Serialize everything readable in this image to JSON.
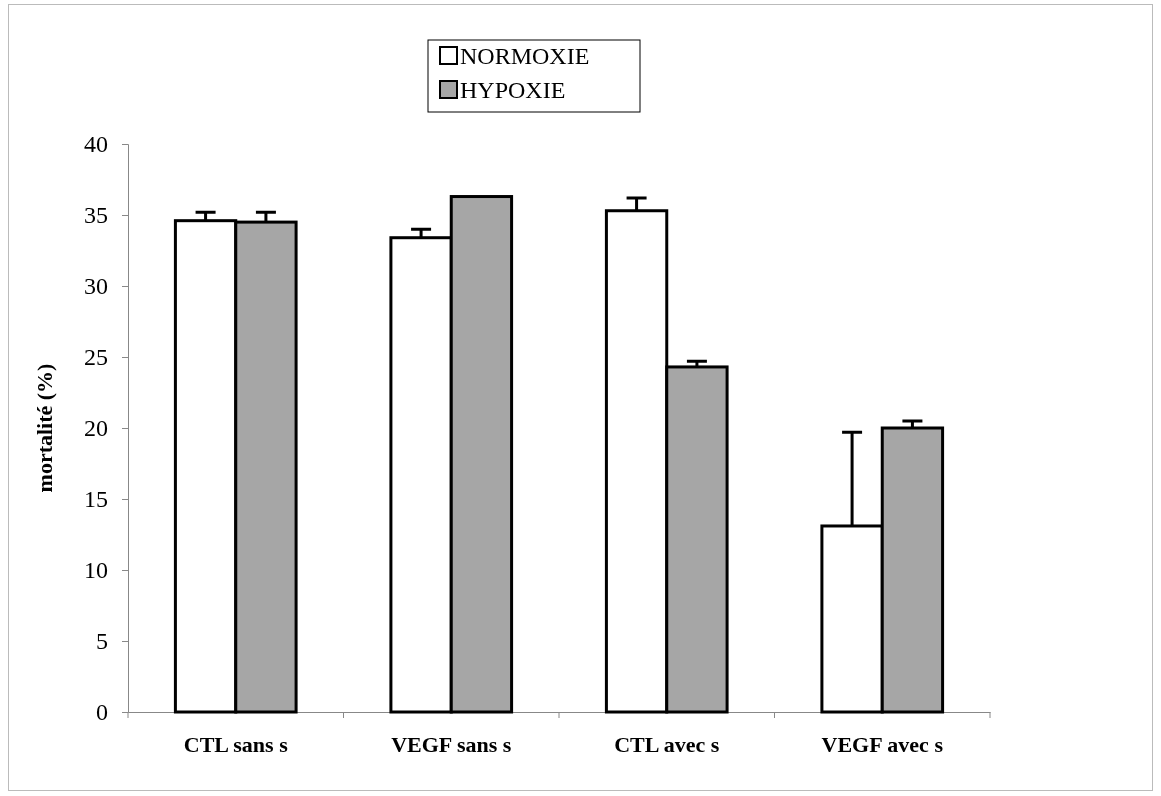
{
  "chart_data": {
    "type": "bar",
    "ylabel": "mortalité (%)",
    "categories": [
      "CTL sans s",
      "VEGF sans s",
      "CTL avec s",
      "VEGF avec s"
    ],
    "series": [
      {
        "name": "NORMOXIE",
        "color": "#ffffff",
        "values": [
          34.6,
          33.4,
          35.3,
          13.1
        ],
        "errors": [
          0.6,
          0.6,
          0.9,
          6.6
        ]
      },
      {
        "name": "HYPOXIE",
        "color": "#a6a6a6",
        "values": [
          34.5,
          36.3,
          24.3,
          20.0
        ],
        "errors": [
          0.7,
          null,
          0.4,
          0.5
        ]
      }
    ],
    "ylim": [
      0,
      40
    ],
    "yticks": [
      0,
      5,
      10,
      15,
      20,
      25,
      30,
      35,
      40
    ],
    "grid": false,
    "legend": "top"
  }
}
